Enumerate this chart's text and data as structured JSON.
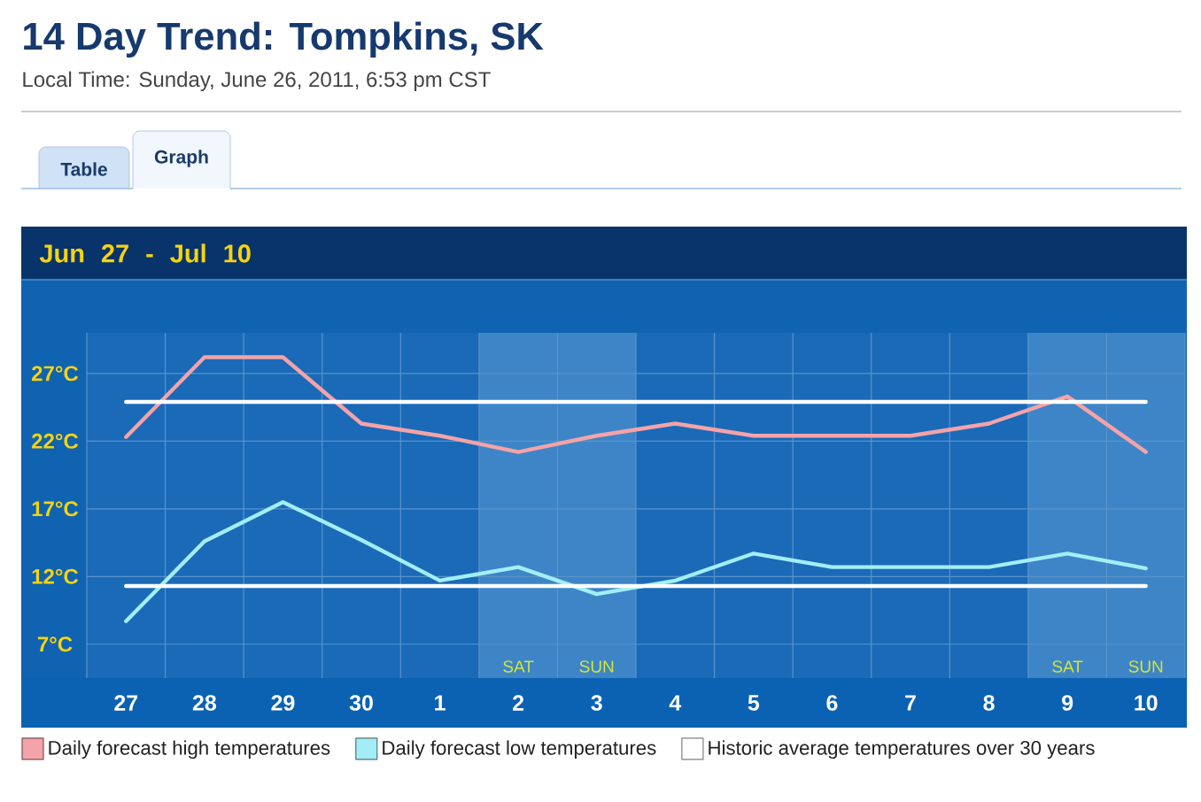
{
  "chart_data": {
    "type": "line",
    "title": "14 Day Trend: Tompkins, SK",
    "subtitle": "Local Time: Sunday, June 26, 2011, 6:53 pm CST",
    "categories": [
      "27",
      "28",
      "29",
      "30",
      "1",
      "2",
      "3",
      "4",
      "5",
      "6",
      "7",
      "8",
      "9",
      "10"
    ],
    "series": [
      {
        "name": "Daily forecast high temperatures",
        "color": "#f4a3a8",
        "values": [
          22.3,
          28.2,
          28.2,
          23.3,
          22.4,
          21.2,
          22.4,
          23.3,
          22.4,
          22.4,
          22.4,
          23.3,
          25.3,
          21.2
        ]
      },
      {
        "name": "Daily forecast low temperatures",
        "color": "#a3eef6",
        "values": [
          8.7,
          14.6,
          17.5,
          14.7,
          11.7,
          12.7,
          10.7,
          11.7,
          13.7,
          12.7,
          12.7,
          12.7,
          13.7,
          12.6
        ]
      },
      {
        "name": "Historic average temperatures over 30 years",
        "color": "#ffffff",
        "values": [
          24.9,
          24.9,
          24.9,
          24.9,
          24.9,
          24.9,
          24.9,
          24.9,
          24.9,
          24.9,
          24.9,
          24.9,
          24.9,
          24.9
        ]
      },
      {
        "color": "#ffffff",
        "values": [
          11.3,
          11.3,
          11.3,
          11.3,
          11.3,
          11.3,
          11.3,
          11.3,
          11.3,
          11.3,
          11.3,
          11.3,
          11.3,
          11.3
        ]
      }
    ],
    "ylim": [
      4.5,
      30
    ],
    "yticks": [
      {
        "value": 7,
        "label": "7°C"
      },
      {
        "value": 12,
        "label": "12°C"
      },
      {
        "value": 17,
        "label": "17°C"
      },
      {
        "value": 22,
        "label": "22°C"
      },
      {
        "value": 27,
        "label": "27°C"
      }
    ],
    "grid": true,
    "legend": "bottom",
    "bands": [
      {
        "axis": "x",
        "from": "2",
        "to": "3",
        "color": "#3d85c6"
      },
      {
        "axis": "x",
        "from": "9",
        "to": "10",
        "color": "#3d85c6"
      }
    ],
    "annotations": [
      "Table",
      "Graph",
      "Jun 27 - Jul 10",
      "SAT",
      "SUN",
      "SAT",
      "SUN"
    ]
  }
}
